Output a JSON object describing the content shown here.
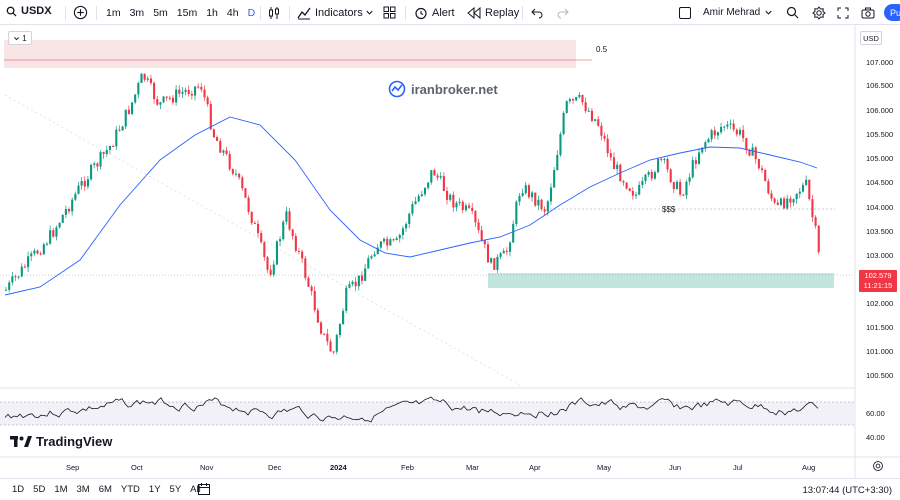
{
  "toolbar": {
    "symbol": "USDX",
    "intervals": [
      {
        "label": "1m",
        "active": false
      },
      {
        "label": "3m",
        "active": false
      },
      {
        "label": "5m",
        "active": false
      },
      {
        "label": "15m",
        "active": false
      },
      {
        "label": "1h",
        "active": false
      },
      {
        "label": "4h",
        "active": false
      },
      {
        "label": "D",
        "active": true
      }
    ],
    "indicators_label": "Indicators",
    "alert_label": "Alert",
    "replay_label": "Replay",
    "user_name": "Amir Mehrad",
    "publish_label": "Pu"
  },
  "chart": {
    "legend_count": "1",
    "watermark": "iranbroker.net",
    "fib_label": "0.5",
    "annotation": "$$$",
    "brand": "TradingView",
    "currency": "USD",
    "price_ticks": [
      "107.000",
      "106.500",
      "106.000",
      "105.500",
      "105.000",
      "104.500",
      "104.000",
      "103.500",
      "103.000",
      "102.000",
      "101.500",
      "101.000",
      "100.500"
    ],
    "current_price": "102.579",
    "countdown": "11:21:15",
    "rsi_ticks": [
      "60.00",
      "40.00"
    ],
    "x_labels": [
      "Sep",
      "Oct",
      "Nov",
      "Dec",
      "2024",
      "Feb",
      "Mar",
      "Apr",
      "May",
      "Jun",
      "Jul",
      "Aug"
    ],
    "colors": {
      "up": "#089981",
      "down": "#f23645",
      "ma": "#2962ff",
      "zone_red": "#f7d9dc",
      "zone_green": "#b2e0d6"
    }
  },
  "bottom": {
    "ranges": [
      "1D",
      "5D",
      "1M",
      "3M",
      "6M",
      "YTD",
      "1Y",
      "5Y",
      "All"
    ],
    "clock": "13:07:44 (UTC+3:30)"
  }
}
